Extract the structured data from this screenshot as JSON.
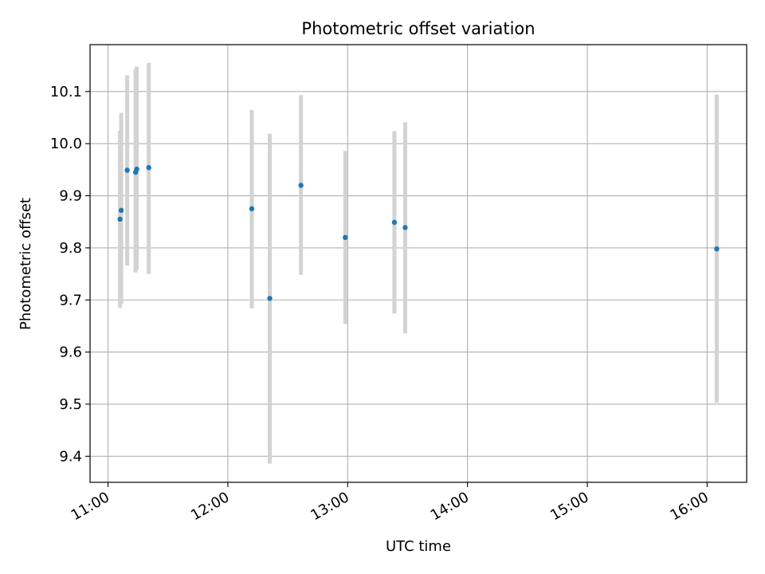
{
  "chart_data": {
    "type": "scatter",
    "title": "Photometric offset variation",
    "xlabel": "UTC time",
    "ylabel": "Photometric offset",
    "x_unit": "hours (UTC)",
    "xlim": [
      10.85,
      16.33
    ],
    "ylim": [
      9.35,
      10.19
    ],
    "x_ticks": [
      11,
      12,
      13,
      14,
      15,
      16
    ],
    "x_tick_labels": [
      "11:00",
      "12:00",
      "13:00",
      "14:00",
      "15:00",
      "16:00"
    ],
    "y_ticks": [
      9.4,
      9.5,
      9.6,
      9.7,
      9.8,
      9.9,
      10.0,
      10.1
    ],
    "y_tick_labels": [
      "9.4",
      "9.5",
      "9.6",
      "9.7",
      "9.8",
      "9.9",
      "10.0",
      "10.1"
    ],
    "grid": true,
    "marker_color": "#1f77b4",
    "errorbar_color": "#d3d3d3",
    "points": [
      {
        "x": 11.1,
        "y": 9.855,
        "yerr_low": 9.685,
        "yerr_high": 10.025
      },
      {
        "x": 11.11,
        "y": 9.872,
        "yerr_low": 9.693,
        "yerr_high": 10.059
      },
      {
        "x": 11.16,
        "y": 9.949,
        "yerr_low": 9.766,
        "yerr_high": 10.131
      },
      {
        "x": 11.23,
        "y": 9.945,
        "yerr_low": 9.753,
        "yerr_high": 10.143
      },
      {
        "x": 11.24,
        "y": 9.951,
        "yerr_low": 9.758,
        "yerr_high": 10.148
      },
      {
        "x": 11.34,
        "y": 9.954,
        "yerr_low": 9.75,
        "yerr_high": 10.155
      },
      {
        "x": 12.2,
        "y": 9.875,
        "yerr_low": 9.684,
        "yerr_high": 10.065
      },
      {
        "x": 12.35,
        "y": 9.703,
        "yerr_low": 9.386,
        "yerr_high": 10.019
      },
      {
        "x": 12.61,
        "y": 9.92,
        "yerr_low": 9.748,
        "yerr_high": 10.093
      },
      {
        "x": 12.98,
        "y": 9.82,
        "yerr_low": 9.654,
        "yerr_high": 9.986
      },
      {
        "x": 13.39,
        "y": 9.849,
        "yerr_low": 9.674,
        "yerr_high": 10.024
      },
      {
        "x": 13.48,
        "y": 9.839,
        "yerr_low": 9.636,
        "yerr_high": 10.041
      },
      {
        "x": 16.08,
        "y": 9.798,
        "yerr_low": 9.503,
        "yerr_high": 10.094
      }
    ]
  }
}
